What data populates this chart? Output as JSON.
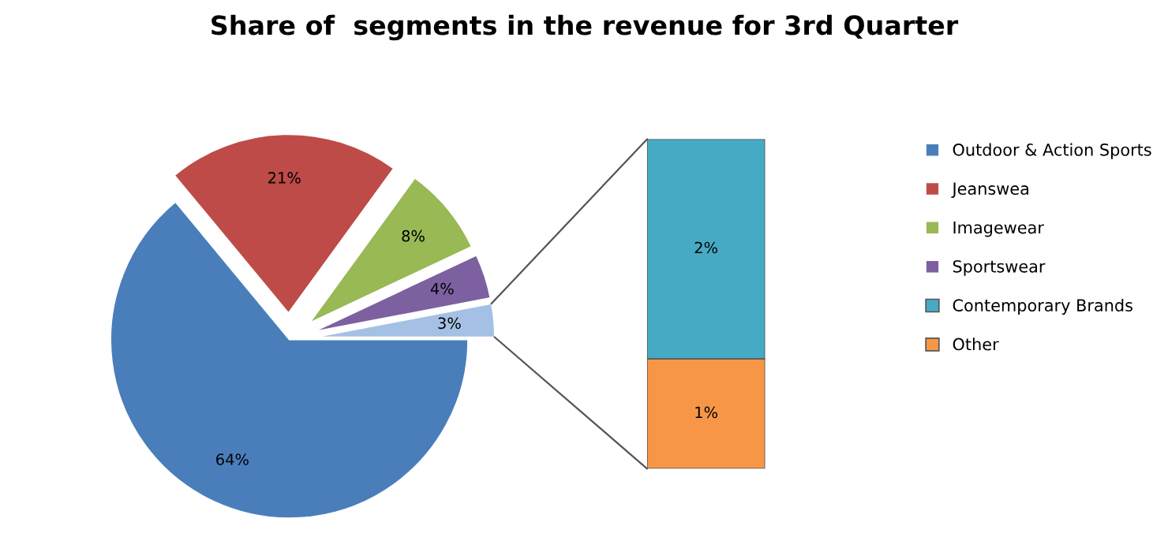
{
  "chart_data": [
    {
      "type": "pie",
      "title": "Share of  segments in the revenue for 3rd Quarter",
      "categories": [
        "Outdoor & Action Sports",
        "Jeanswea",
        "Imagewear",
        "Sportswear",
        null
      ],
      "values": [
        64,
        21,
        8,
        4,
        3
      ],
      "colors": [
        "#4a7ebb",
        "#be4b48",
        "#98b954",
        "#7d60a0",
        "#a5c0e5"
      ],
      "value_labels": [
        "64%",
        "21%",
        "8%",
        "4%",
        "3%"
      ],
      "legend": "right"
    },
    {
      "type": "bar",
      "stacked": true,
      "categories": [
        null
      ],
      "series": [
        {
          "name": "Other",
          "color": "#f79646",
          "values": [
            1
          ],
          "value_labels": [
            "1%"
          ]
        },
        {
          "name": "Contemporary Brands",
          "color": "#46aac5",
          "values": [
            2
          ],
          "value_labels": [
            "2%"
          ]
        }
      ],
      "legend": "right"
    }
  ]
}
